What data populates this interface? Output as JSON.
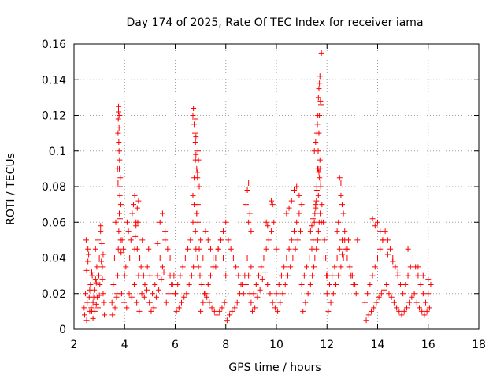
{
  "chart_data": {
    "type": "scatter",
    "title": "Day 174 of 2025, Rate Of TEC Index for receiver iama",
    "xlabel": "GPS time / hours",
    "ylabel": "ROTI / TECUs",
    "xlim": [
      2,
      18
    ],
    "ylim": [
      0,
      0.16
    ],
    "x_ticks": [
      2,
      4,
      6,
      8,
      10,
      12,
      14,
      16,
      18
    ],
    "y_ticks": [
      0,
      0.02,
      0.04,
      0.06,
      0.08,
      0.1,
      0.12,
      0.14,
      0.16
    ],
    "x_tick_labels": [
      "2",
      "4",
      "6",
      "8",
      "10",
      "12",
      "14",
      "16",
      "18"
    ],
    "y_tick_labels": [
      "0",
      "0.02",
      "0.04",
      "0.06",
      "0.08",
      "0.1",
      "0.12",
      "0.14",
      "0.16"
    ],
    "grid": true,
    "marker": "+",
    "color": "#ff0000",
    "series": [
      {
        "name": "ROTI",
        "x": [
          2.4,
          2.45,
          2.5,
          2.55,
          2.6,
          2.65,
          2.7,
          2.75,
          2.8,
          2.85,
          2.9,
          2.95,
          3.0,
          3.05,
          3.1,
          3.15,
          3.2,
          2.42,
          2.52,
          2.62,
          2.72,
          2.82,
          2.92,
          3.02,
          3.12,
          2.48,
          2.58,
          2.68,
          2.78,
          2.88,
          2.98,
          3.08,
          3.18,
          2.5,
          2.62,
          2.75,
          2.88,
          3.0,
          3.12,
          2.55,
          2.7,
          2.85,
          2.95,
          3.05,
          3.15,
          3.5,
          3.55,
          3.6,
          3.65,
          3.7,
          3.72,
          3.74,
          3.76,
          3.78,
          3.8,
          3.82,
          3.85,
          3.9,
          3.95,
          4.0,
          4.05,
          4.1,
          4.15,
          4.2,
          4.25,
          4.3,
          4.35,
          4.4,
          4.45,
          4.5,
          4.55,
          4.6,
          4.65,
          4.7,
          4.75,
          4.8,
          4.85,
          4.9,
          4.95,
          5.0,
          3.52,
          3.62,
          3.68,
          3.73,
          3.75,
          3.77,
          3.79,
          3.81,
          3.83,
          3.88,
          3.98,
          4.08,
          4.18,
          4.28,
          4.38,
          4.48,
          4.58,
          4.68,
          4.78,
          4.88,
          4.98,
          3.75,
          3.76,
          3.78,
          3.8,
          3.77,
          3.79,
          3.74,
          3.82,
          3.84,
          3.86,
          4.4,
          4.45,
          4.5,
          4.55,
          4.6,
          4.42,
          4.52,
          5.0,
          5.1,
          5.2,
          5.3,
          5.4,
          5.5,
          5.6,
          5.7,
          5.8,
          5.9,
          6.0,
          5.05,
          5.15,
          5.25,
          5.35,
          5.45,
          5.55,
          5.65,
          5.75,
          5.85,
          5.95,
          5.5,
          5.6,
          5.4,
          5.8,
          5.3,
          6.0,
          6.1,
          6.2,
          6.3,
          6.4,
          6.5,
          6.6,
          6.7,
          6.75,
          6.8,
          6.85,
          6.9,
          6.95,
          7.0,
          7.1,
          7.2,
          7.3,
          7.4,
          7.5,
          7.6,
          7.7,
          7.8,
          7.9,
          8.0,
          6.05,
          6.15,
          6.25,
          6.35,
          6.45,
          6.55,
          6.65,
          6.72,
          6.78,
          6.82,
          6.88,
          6.92,
          6.98,
          7.05,
          7.15,
          7.25,
          7.35,
          7.45,
          7.55,
          7.65,
          7.75,
          7.85,
          7.95,
          6.7,
          6.72,
          6.75,
          6.78,
          6.8,
          6.82,
          6.85,
          6.88,
          6.9,
          6.92,
          6.95,
          6.7,
          6.75,
          6.8,
          6.85,
          6.9,
          6.78,
          6.82,
          6.88,
          7.0,
          7.1,
          7.2,
          7.3,
          7.4,
          7.5,
          7.6,
          7.7,
          7.8,
          7.9,
          8.0,
          8.1,
          8.2,
          8.3,
          8.4,
          8.5,
          8.6,
          8.7,
          8.8,
          8.9,
          9.0,
          8.05,
          8.15,
          8.25,
          8.35,
          8.45,
          8.55,
          8.65,
          8.75,
          8.85,
          8.95,
          8.8,
          8.85,
          8.9,
          8.95,
          9.0,
          8.9,
          9.0,
          9.1,
          9.2,
          9.3,
          9.4,
          9.5,
          9.6,
          9.7,
          9.8,
          9.9,
          10.0,
          9.05,
          9.15,
          9.25,
          9.35,
          9.45,
          9.55,
          9.65,
          9.75,
          9.85,
          9.95,
          9.8,
          9.85,
          9.6,
          9.65,
          10.0,
          10.1,
          10.2,
          10.3,
          10.4,
          10.5,
          10.6,
          10.7,
          10.8,
          10.9,
          11.0,
          10.05,
          10.15,
          10.25,
          10.35,
          10.45,
          10.55,
          10.65,
          10.75,
          10.85,
          10.95,
          10.6,
          10.7,
          10.8,
          10.9,
          10.5,
          10.4,
          11.0,
          11.1,
          11.2,
          11.3,
          11.4,
          11.45,
          11.5,
          11.55,
          11.6,
          11.62,
          11.65,
          11.68,
          11.7,
          11.72,
          11.75,
          11.8,
          11.85,
          11.9,
          11.95,
          12.0,
          11.05,
          11.15,
          11.25,
          11.35,
          11.42,
          11.48,
          11.52,
          11.58,
          11.63,
          11.66,
          11.69,
          11.73,
          11.78,
          11.88,
          11.98,
          11.5,
          11.55,
          11.6,
          11.62,
          11.64,
          11.66,
          11.68,
          11.7,
          11.72,
          11.74,
          11.76,
          11.78,
          11.65,
          11.7,
          11.75,
          11.6,
          11.72,
          11.68,
          11.66,
          11.55,
          11.58,
          11.52,
          11.45,
          11.4,
          11.35,
          12.0,
          12.1,
          12.2,
          12.3,
          12.4,
          12.5,
          12.6,
          12.7,
          12.8,
          12.9,
          13.0,
          13.1,
          13.2,
          12.05,
          12.15,
          12.25,
          12.35,
          12.45,
          12.55,
          12.65,
          12.75,
          12.85,
          12.95,
          13.05,
          13.15,
          12.5,
          12.55,
          12.6,
          12.65,
          12.45,
          12.4,
          12.7,
          12.8,
          12.6,
          12.55,
          13.5,
          13.6,
          13.7,
          13.8,
          13.9,
          14.0,
          14.1,
          14.2,
          14.3,
          14.4,
          14.5,
          14.6,
          14.7,
          14.8,
          14.9,
          15.0,
          15.1,
          15.2,
          15.3,
          15.4,
          15.5,
          15.6,
          15.7,
          15.8,
          15.9,
          16.0,
          16.1,
          13.55,
          13.65,
          13.75,
          13.85,
          13.95,
          14.05,
          14.15,
          14.25,
          14.35,
          14.45,
          14.55,
          14.65,
          14.75,
          14.85,
          14.95,
          15.05,
          15.15,
          15.25,
          15.35,
          15.45,
          15.55,
          15.65,
          15.75,
          15.85,
          15.95,
          16.05,
          13.8,
          13.9,
          14.0,
          14.1,
          14.2,
          15.2,
          15.4,
          15.6,
          15.8,
          16.0,
          14.4,
          14.6,
          14.8
        ],
        "y": [
          0.012,
          0.02,
          0.033,
          0.045,
          0.018,
          0.025,
          0.01,
          0.015,
          0.022,
          0.028,
          0.035,
          0.012,
          0.04,
          0.055,
          0.048,
          0.02,
          0.008,
          0.008,
          0.015,
          0.022,
          0.03,
          0.01,
          0.018,
          0.025,
          0.035,
          0.05,
          0.042,
          0.012,
          0.018,
          0.026,
          0.03,
          0.038,
          0.015,
          0.005,
          0.01,
          0.006,
          0.014,
          0.019,
          0.028,
          0.038,
          0.032,
          0.045,
          0.05,
          0.058,
          0.042,
          0.015,
          0.025,
          0.04,
          0.06,
          0.02,
          0.09,
          0.11,
          0.125,
          0.1,
          0.12,
          0.08,
          0.07,
          0.05,
          0.045,
          0.03,
          0.035,
          0.06,
          0.055,
          0.04,
          0.05,
          0.065,
          0.07,
          0.075,
          0.06,
          0.045,
          0.03,
          0.04,
          0.035,
          0.05,
          0.03,
          0.025,
          0.04,
          0.035,
          0.045,
          0.03,
          0.008,
          0.012,
          0.018,
          0.03,
          0.045,
          0.055,
          0.065,
          0.075,
          0.085,
          0.02,
          0.015,
          0.012,
          0.02,
          0.018,
          0.025,
          0.015,
          0.01,
          0.02,
          0.018,
          0.022,
          0.015,
          0.118,
          0.122,
          0.113,
          0.095,
          0.105,
          0.09,
          0.082,
          0.062,
          0.05,
          0.043,
          0.045,
          0.058,
          0.068,
          0.072,
          0.04,
          0.052,
          0.06,
          0.015,
          0.02,
          0.025,
          0.03,
          0.04,
          0.035,
          0.05,
          0.045,
          0.03,
          0.025,
          0.02,
          0.01,
          0.012,
          0.018,
          0.022,
          0.028,
          0.032,
          0.015,
          0.02,
          0.025,
          0.03,
          0.065,
          0.055,
          0.06,
          0.04,
          0.048,
          0.02,
          0.025,
          0.03,
          0.035,
          0.04,
          0.045,
          0.05,
          0.06,
          0.07,
          0.055,
          0.065,
          0.06,
          0.045,
          0.05,
          0.04,
          0.055,
          0.05,
          0.045,
          0.04,
          0.035,
          0.045,
          0.05,
          0.04,
          0.03,
          0.01,
          0.012,
          0.015,
          0.018,
          0.02,
          0.025,
          0.03,
          0.035,
          0.04,
          0.045,
          0.04,
          0.035,
          0.03,
          0.025,
          0.02,
          0.018,
          0.015,
          0.012,
          0.01,
          0.008,
          0.01,
          0.012,
          0.015,
          0.12,
          0.124,
          0.115,
          0.11,
          0.105,
          0.098,
          0.09,
          0.085,
          0.1,
          0.095,
          0.08,
          0.075,
          0.085,
          0.095,
          0.065,
          0.07,
          0.118,
          0.108,
          0.088,
          0.01,
          0.015,
          0.02,
          0.025,
          0.03,
          0.035,
          0.04,
          0.045,
          0.05,
          0.055,
          0.06,
          0.05,
          0.045,
          0.04,
          0.035,
          0.03,
          0.025,
          0.02,
          0.025,
          0.03,
          0.035,
          0.005,
          0.008,
          0.01,
          0.012,
          0.015,
          0.02,
          0.025,
          0.03,
          0.04,
          0.02,
          0.07,
          0.078,
          0.082,
          0.065,
          0.055,
          0.06,
          0.015,
          0.02,
          0.025,
          0.03,
          0.035,
          0.04,
          0.045,
          0.05,
          0.055,
          0.06,
          0.045,
          0.01,
          0.012,
          0.018,
          0.022,
          0.028,
          0.032,
          0.025,
          0.02,
          0.015,
          0.012,
          0.072,
          0.07,
          0.06,
          0.058,
          0.02,
          0.025,
          0.03,
          0.035,
          0.04,
          0.045,
          0.05,
          0.055,
          0.06,
          0.065,
          0.07,
          0.01,
          0.015,
          0.02,
          0.025,
          0.03,
          0.035,
          0.04,
          0.045,
          0.05,
          0.055,
          0.072,
          0.078,
          0.08,
          0.075,
          0.068,
          0.065,
          0.025,
          0.03,
          0.035,
          0.04,
          0.045,
          0.05,
          0.06,
          0.07,
          0.08,
          0.09,
          0.1,
          0.11,
          0.12,
          0.09,
          0.08,
          0.07,
          0.06,
          0.05,
          0.04,
          0.03,
          0.01,
          0.015,
          0.02,
          0.025,
          0.03,
          0.035,
          0.04,
          0.045,
          0.05,
          0.055,
          0.06,
          0.065,
          0.06,
          0.04,
          0.03,
          0.1,
          0.105,
          0.11,
          0.115,
          0.12,
          0.13,
          0.135,
          0.138,
          0.142,
          0.128,
          0.126,
          0.155,
          0.09,
          0.085,
          0.082,
          0.078,
          0.095,
          0.088,
          0.075,
          0.068,
          0.072,
          0.065,
          0.062,
          0.058,
          0.055,
          0.02,
          0.025,
          0.03,
          0.035,
          0.04,
          0.045,
          0.05,
          0.055,
          0.04,
          0.035,
          0.03,
          0.025,
          0.05,
          0.01,
          0.015,
          0.02,
          0.025,
          0.03,
          0.035,
          0.04,
          0.045,
          0.05,
          0.03,
          0.025,
          0.02,
          0.085,
          0.082,
          0.07,
          0.065,
          0.06,
          0.055,
          0.05,
          0.045,
          0.042,
          0.075,
          0.015,
          0.02,
          0.025,
          0.03,
          0.035,
          0.04,
          0.045,
          0.05,
          0.055,
          0.05,
          0.045,
          0.04,
          0.035,
          0.03,
          0.025,
          0.02,
          0.025,
          0.03,
          0.035,
          0.04,
          0.035,
          0.03,
          0.025,
          0.02,
          0.015,
          0.02,
          0.025,
          0.005,
          0.008,
          0.01,
          0.012,
          0.015,
          0.018,
          0.02,
          0.022,
          0.025,
          0.02,
          0.018,
          0.015,
          0.012,
          0.01,
          0.008,
          0.01,
          0.012,
          0.015,
          0.018,
          0.02,
          0.015,
          0.012,
          0.01,
          0.008,
          0.01,
          0.012,
          0.062,
          0.058,
          0.06,
          0.055,
          0.05,
          0.045,
          0.04,
          0.035,
          0.03,
          0.028,
          0.042,
          0.038,
          0.032
        ]
      }
    ]
  }
}
